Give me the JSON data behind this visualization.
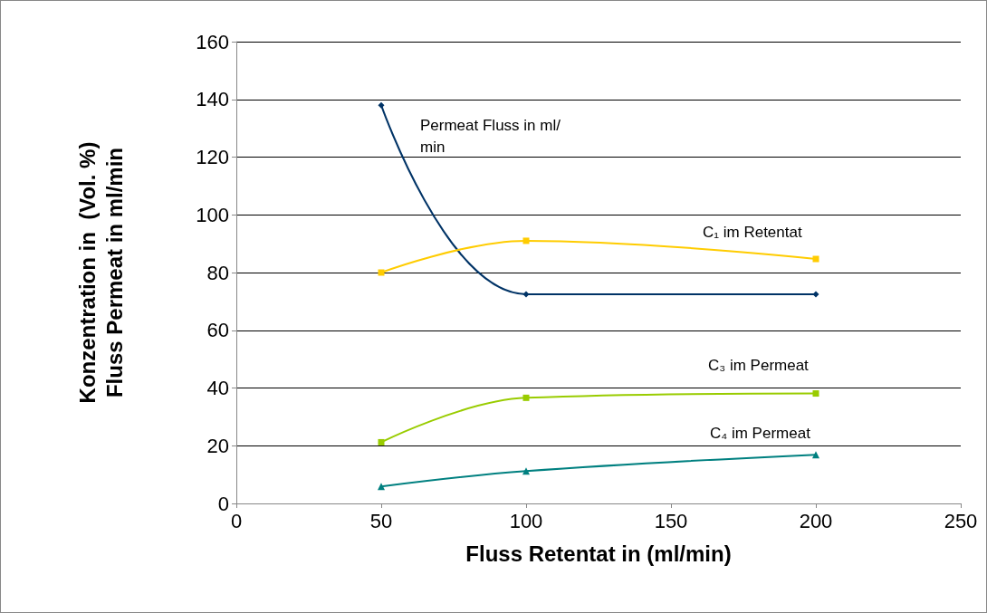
{
  "chart_data": {
    "type": "line",
    "xlabel": "Fluss Retentat in (ml/min)",
    "ylabel": "Konzentration in  (Vol. %)\nFluss Permeat in ml/min",
    "x": [
      50,
      100,
      200
    ],
    "series": [
      {
        "name": "Permeat Fluss in ml/min",
        "color": "#003366",
        "marker": "diamond",
        "values": [
          138,
          72.5,
          72.5
        ]
      },
      {
        "name": "C₁ im Retentat",
        "color": "#ffcc00",
        "marker": "square",
        "values": [
          80,
          91,
          84.7
        ]
      },
      {
        "name": "C₃ im Permeat",
        "color": "#99cc00",
        "marker": "square",
        "values": [
          21.2,
          36.6,
          38.1
        ]
      },
      {
        "name": "C₄ im Permeat",
        "color": "#008080",
        "marker": "triangle",
        "values": [
          5.9,
          11.2,
          16.9
        ]
      }
    ],
    "xlim": [
      0,
      250
    ],
    "xticks": [
      0,
      50,
      100,
      150,
      200,
      250
    ],
    "ylim": [
      0,
      160
    ],
    "yticks": [
      0,
      20,
      40,
      60,
      80,
      100,
      120,
      140,
      160
    ],
    "grid": "y",
    "line_style": "solid"
  }
}
